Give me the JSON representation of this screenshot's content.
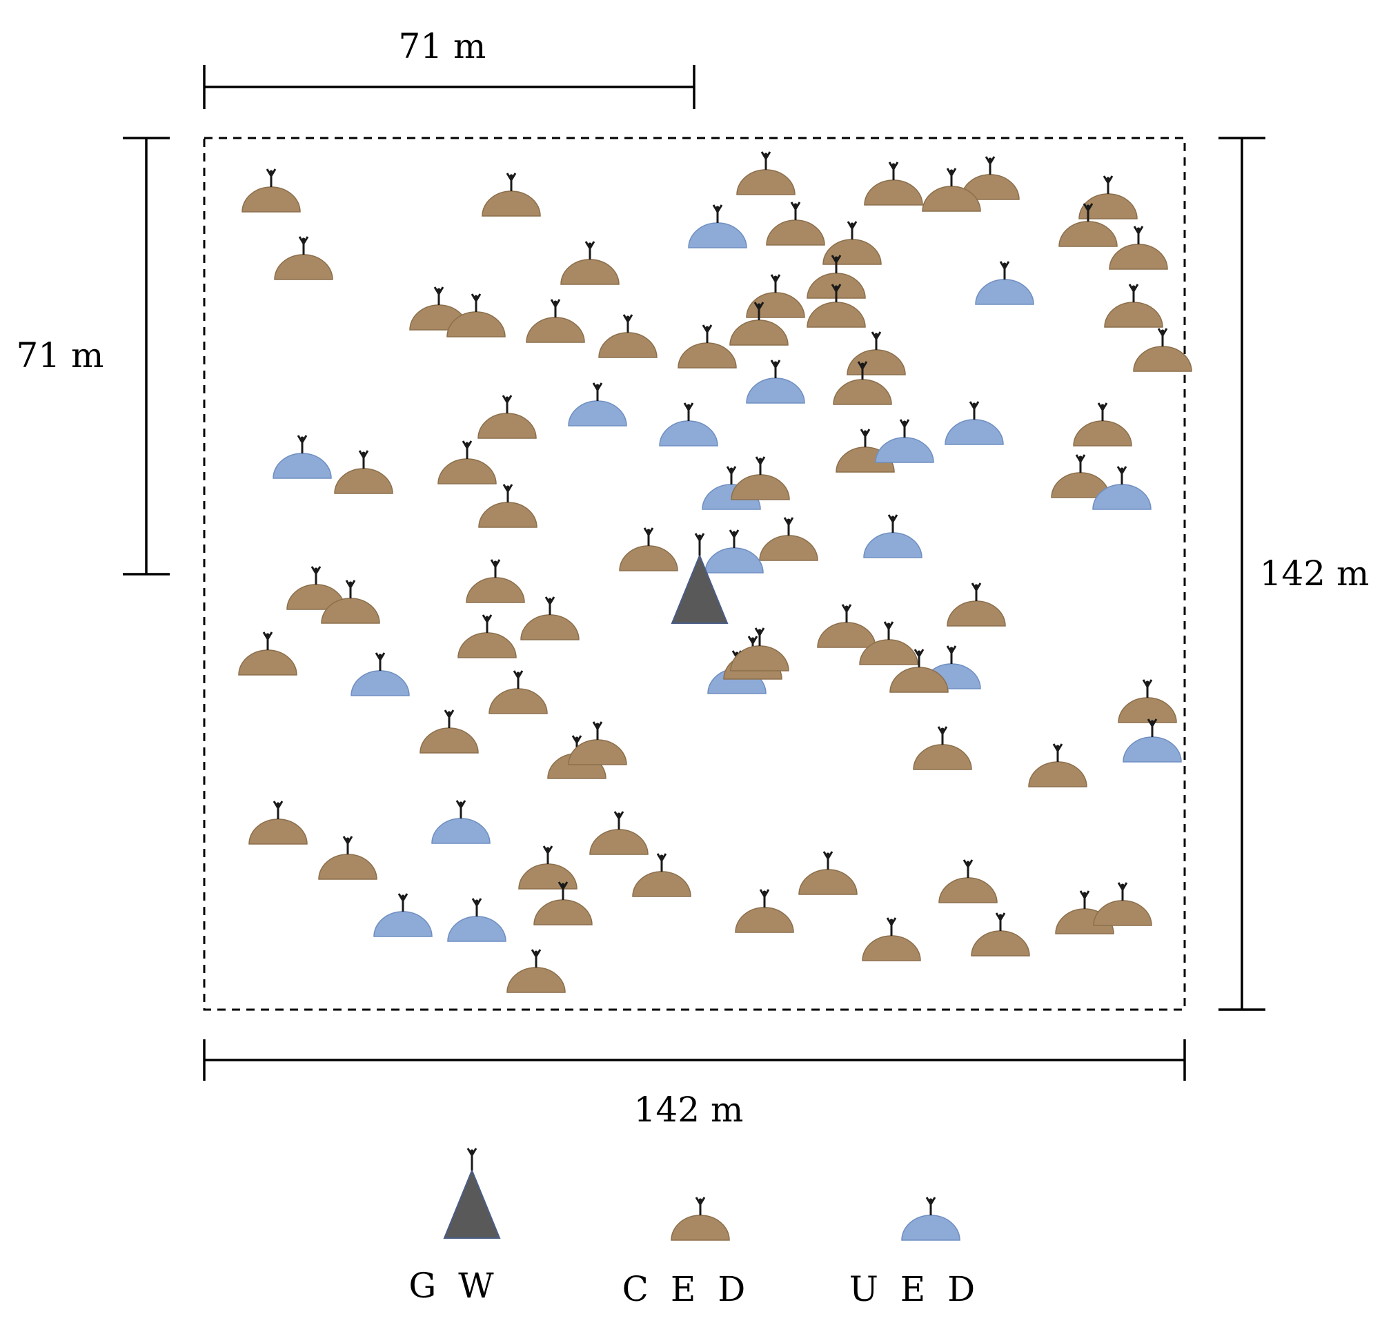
{
  "dimensions": {
    "top_half_width": "71 m",
    "left_half_height": "71 m",
    "right_full_height": "142 m",
    "bottom_full_width": "142 m"
  },
  "legend": [
    {
      "key": "gw",
      "label": "G W",
      "icon": "gateway-triangle-icon",
      "color": "#595959"
    },
    {
      "key": "ced",
      "label": "C E D",
      "icon": "ced-dome-icon",
      "color": "#a88963"
    },
    {
      "key": "ued",
      "label": "U E D",
      "icon": "ued-dome-icon",
      "color": "#8eaad6"
    }
  ],
  "colors": {
    "ced": "#a88963",
    "ued": "#8eaad6",
    "gw": "#595959",
    "antenna": "#1a1a1a"
  }
}
